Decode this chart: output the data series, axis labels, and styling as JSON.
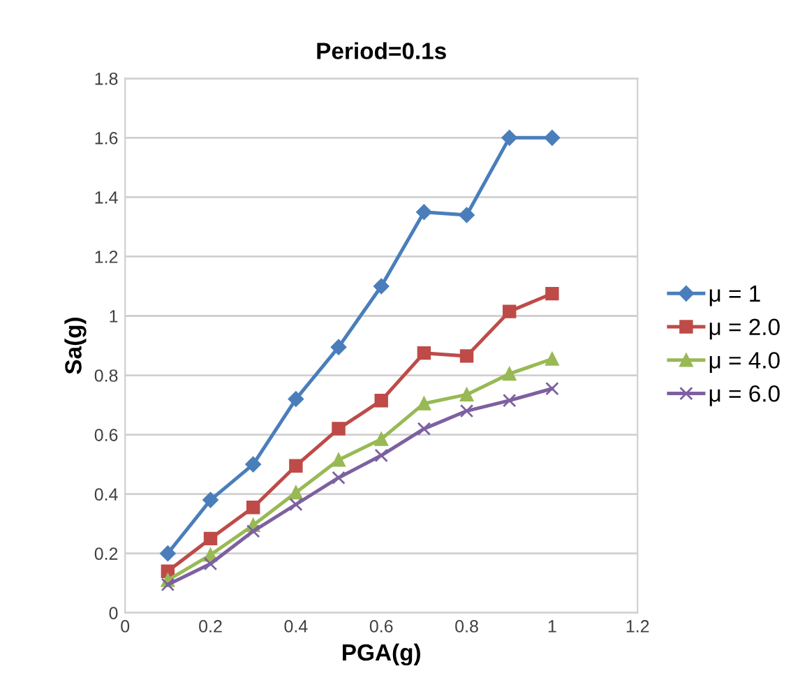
{
  "chart_data": {
    "type": "line",
    "title": "Period=0.1s",
    "xlabel": "PGA(g)",
    "ylabel": "Sa(g)",
    "x": [
      0.1,
      0.2,
      0.3,
      0.4,
      0.5,
      0.6,
      0.7,
      0.8,
      0.9,
      1.0
    ],
    "series": [
      {
        "name": "μ = 1",
        "color": "#4a7ebb",
        "marker": "diamond",
        "values": [
          0.2,
          0.38,
          0.5,
          0.72,
          0.895,
          1.1,
          1.35,
          1.34,
          1.6,
          1.6
        ]
      },
      {
        "name": "μ = 2.0",
        "color": "#be4b48",
        "marker": "square",
        "values": [
          0.14,
          0.25,
          0.355,
          0.495,
          0.62,
          0.715,
          0.875,
          0.865,
          1.015,
          1.075
        ]
      },
      {
        "name": "μ = 4.0",
        "color": "#98b954",
        "marker": "triangle",
        "values": [
          0.11,
          0.195,
          0.295,
          0.405,
          0.515,
          0.585,
          0.705,
          0.735,
          0.805,
          0.855
        ]
      },
      {
        "name": "μ = 6.0",
        "color": "#7d60a0",
        "marker": "cross",
        "values": [
          0.095,
          0.165,
          0.275,
          0.365,
          0.455,
          0.53,
          0.62,
          0.68,
          0.715,
          0.755
        ]
      }
    ],
    "xlim": [
      0,
      1.2
    ],
    "xticks": [
      0,
      0.2,
      0.4,
      0.6,
      0.8,
      1,
      1.2
    ],
    "ylim": [
      0,
      1.8
    ],
    "yticks": [
      0,
      0.2,
      0.4,
      0.6,
      0.8,
      1,
      1.2,
      1.4,
      1.6,
      1.8
    ],
    "grid": "y",
    "legend": "right",
    "line_style": "solid"
  }
}
